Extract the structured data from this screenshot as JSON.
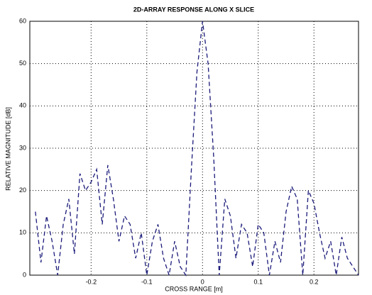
{
  "chart_data": {
    "type": "line",
    "title": "2D-ARRAY RESPONSE ALONG X SLICE",
    "x_label": "CROSS RANGE [m]",
    "y_label": "RELATIVE MAGNITUDE [dB]",
    "x": [
      -0.3,
      -0.29,
      -0.28,
      -0.27,
      -0.26,
      -0.25,
      -0.24,
      -0.23,
      -0.22,
      -0.21,
      -0.2,
      -0.19,
      -0.18,
      -0.17,
      -0.16,
      -0.15,
      -0.14,
      -0.13,
      -0.12,
      -0.11,
      -0.1,
      -0.09,
      -0.08,
      -0.07,
      -0.06,
      -0.05,
      -0.04,
      -0.03,
      -0.02,
      -0.01,
      0,
      0.01,
      0.02,
      0.03,
      0.04,
      0.05,
      0.06,
      0.07,
      0.08,
      0.09,
      0.1,
      0.11,
      0.12,
      0.13,
      0.14,
      0.15,
      0.16,
      0.17,
      0.18,
      0.19,
      0.2,
      0.21,
      0.22,
      0.23,
      0.24,
      0.25,
      0.26,
      0.27,
      0.28
    ],
    "series": [
      {
        "color": "#1a1a7a",
        "values": [
          15,
          3,
          14,
          8,
          0,
          12,
          18,
          5,
          24,
          20,
          22,
          25,
          12,
          26,
          18,
          8,
          14,
          12,
          4,
          10,
          0,
          8,
          12,
          4,
          0,
          8,
          2,
          0,
          25,
          48,
          60,
          50,
          28,
          0,
          18,
          14,
          4,
          12,
          10,
          2,
          12,
          10,
          0,
          8,
          3,
          15,
          21,
          18,
          0,
          20,
          17,
          10,
          4,
          8,
          0,
          9,
          4,
          2,
          0
        ]
      }
    ],
    "xlim": [
      -0.31,
      0.28
    ],
    "xticks": [
      -0.2,
      -0.1,
      0,
      0.1,
      0.2
    ],
    "ylim": [
      0,
      60
    ],
    "yticks": [
      0,
      10,
      20,
      30,
      40,
      50,
      60
    ],
    "grid": true
  }
}
